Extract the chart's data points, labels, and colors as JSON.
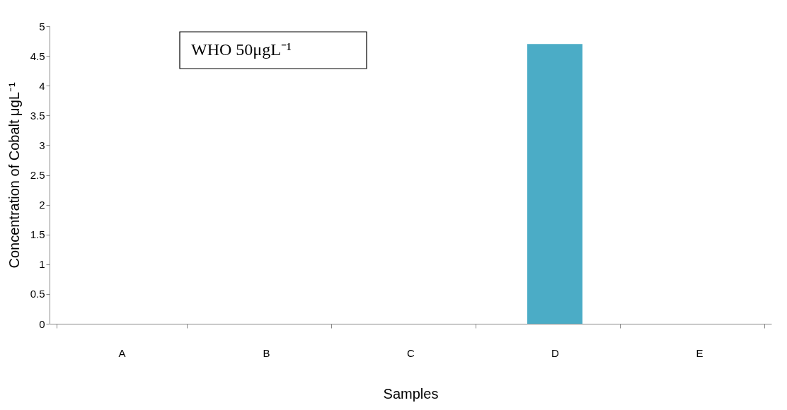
{
  "chart_data": {
    "type": "bar",
    "xlabel": "Samples",
    "ylabel": "Concentration of Cobalt μgL⁻¹",
    "categories": [
      "A",
      "B",
      "C",
      "D",
      "E"
    ],
    "values": [
      0,
      0,
      0,
      4.7,
      0
    ],
    "color": "#4bacc6",
    "ylim": [
      0,
      5
    ],
    "yticks": [
      0,
      0.5,
      1,
      1.5,
      2,
      2.5,
      3,
      3.5,
      4,
      4.5,
      5
    ],
    "grid": false,
    "legend": false,
    "annotations": [
      "WHO 50μgL⁻¹"
    ]
  }
}
